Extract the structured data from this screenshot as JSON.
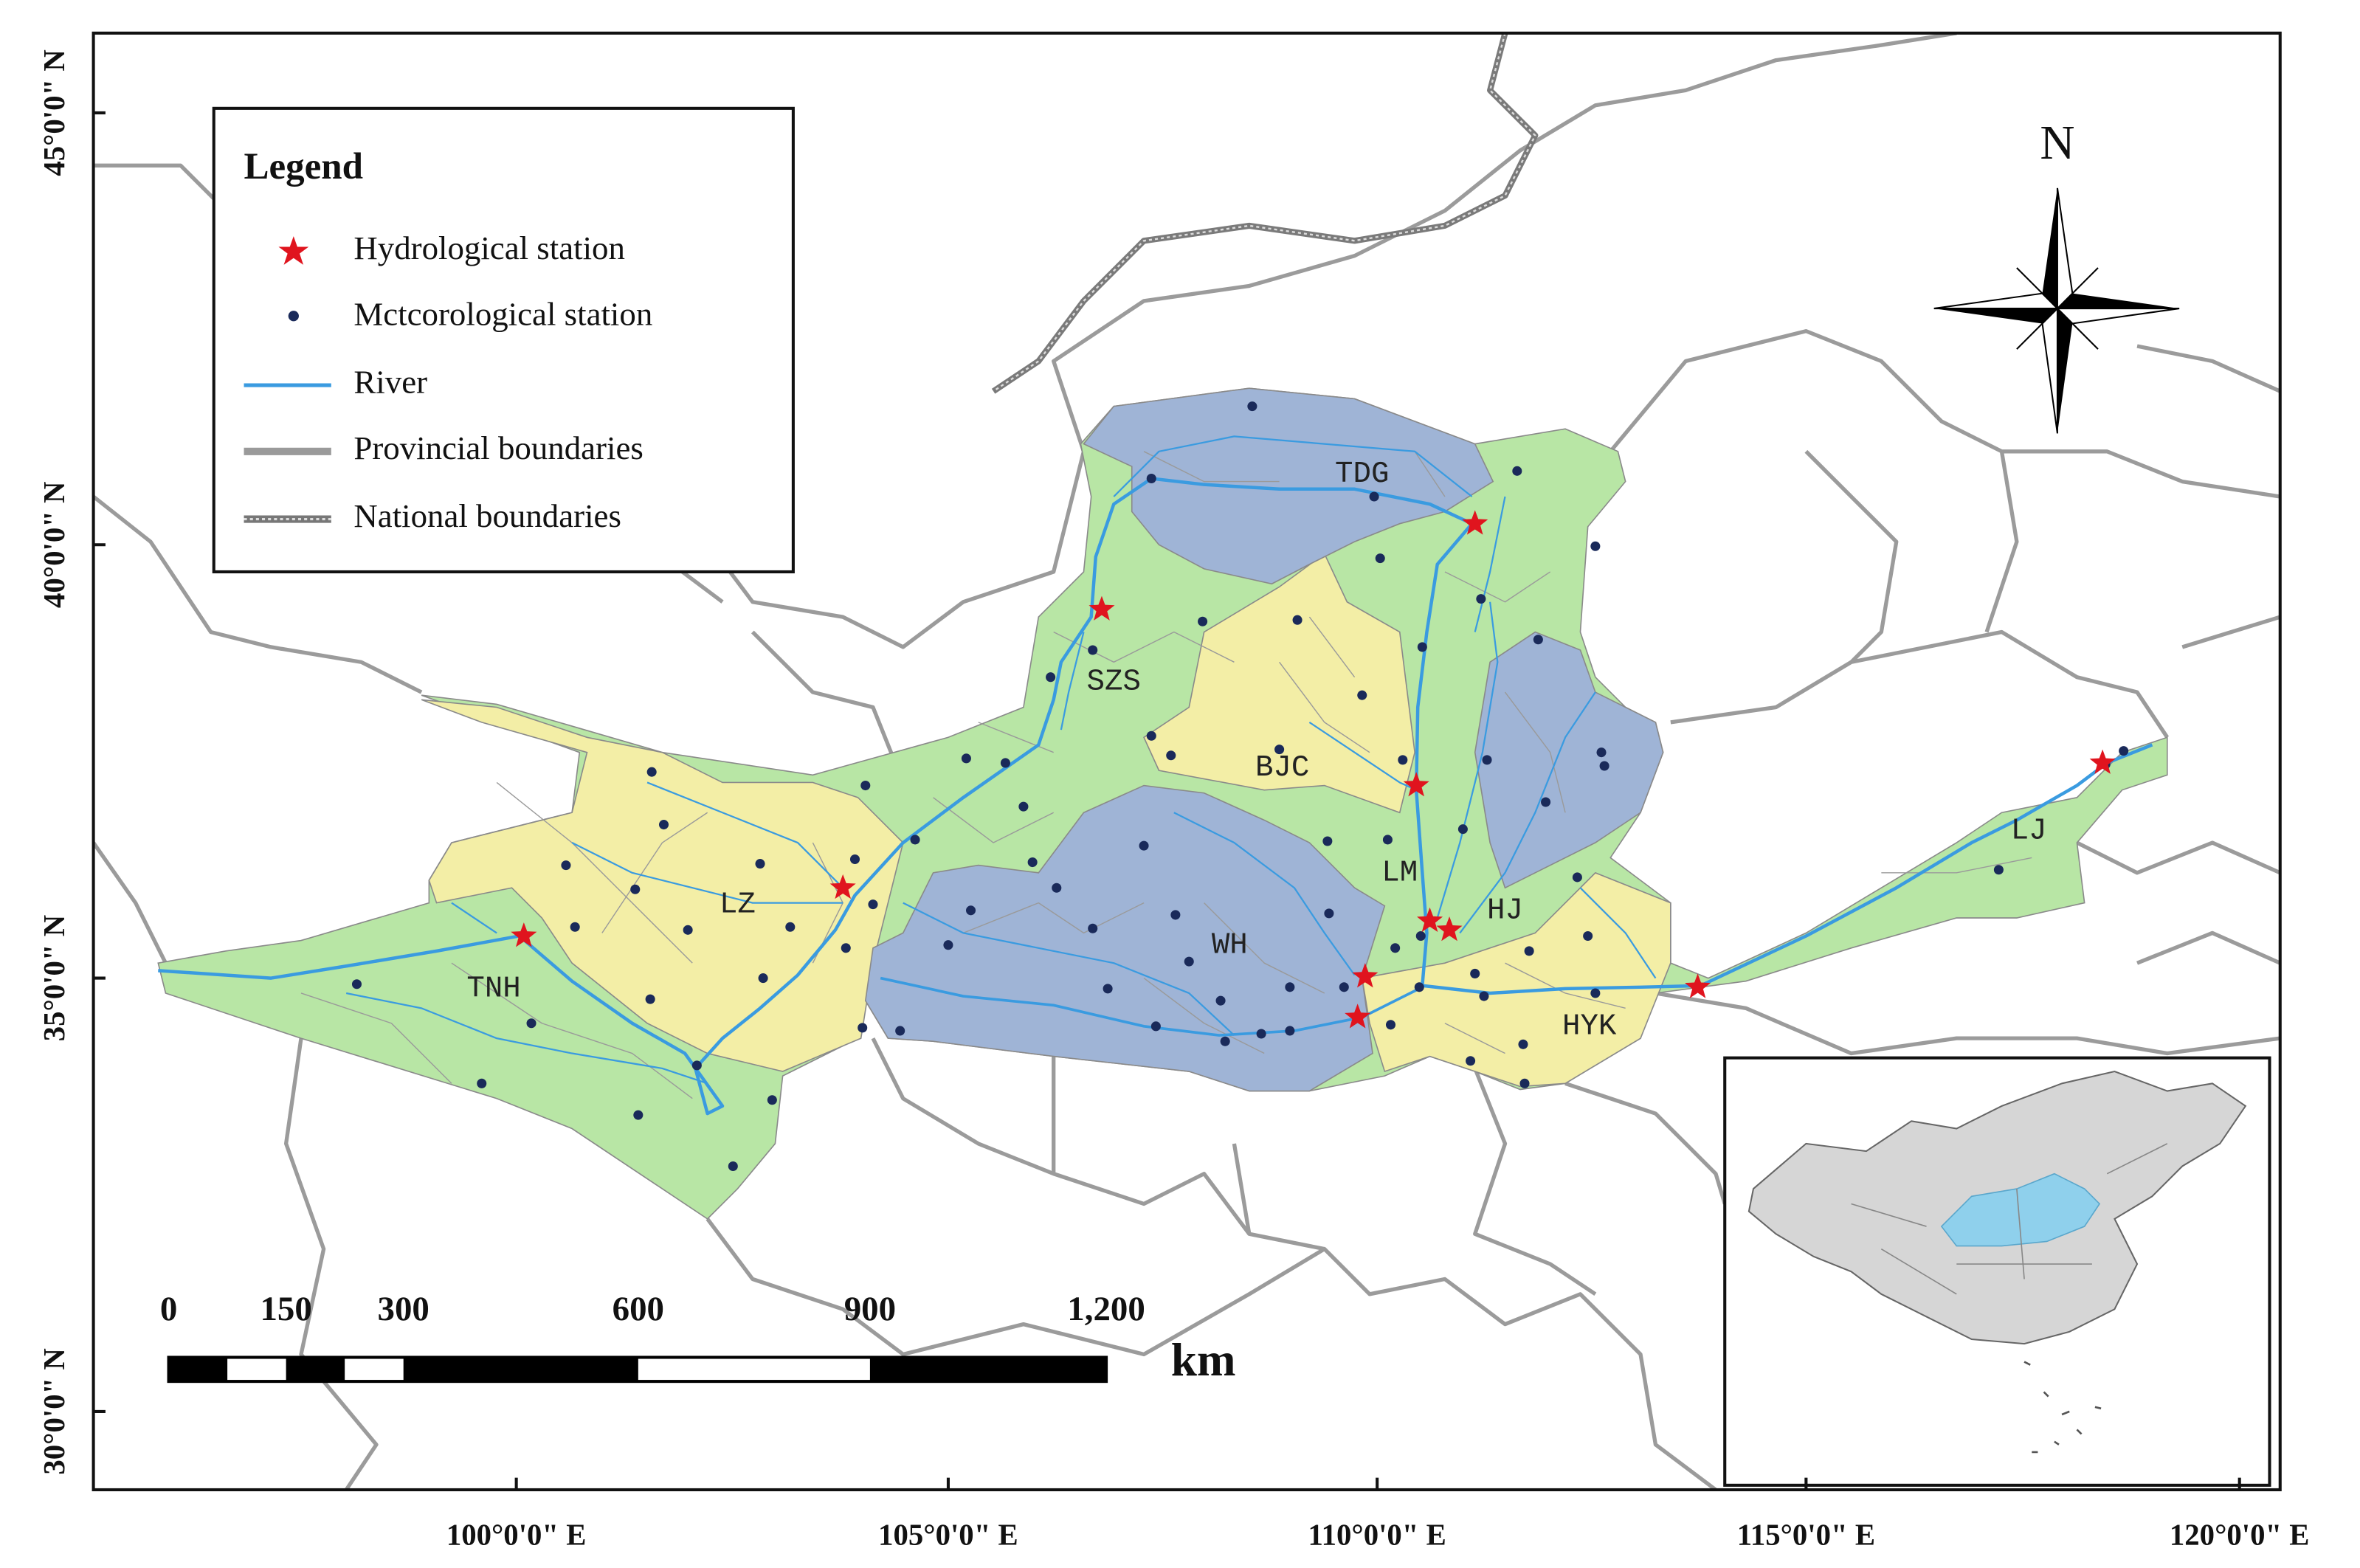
{
  "legend": {
    "title": "Legend",
    "items": [
      "Hydrological station",
      "Mctcorological station",
      "River",
      "Provincial boundaries",
      "National boundaries"
    ]
  },
  "compass": "N",
  "stations": [
    "TDG",
    "SZS",
    "BJC",
    "LM",
    "HJ",
    "WH",
    "LZ",
    "TNH",
    "HYK",
    "LJ"
  ],
  "latitude_labels": [
    "45°0'0\" N",
    "40°0'0\" N",
    "35°0'0\" N",
    "30°0'0\" N"
  ],
  "longitude_labels": [
    "100°0'0\" E",
    "105°0'0\" E",
    "110°0'0\" E",
    "115°0'0\" E",
    "120°0'0\" E"
  ],
  "scale_bar": {
    "labels": [
      "0",
      "150",
      "300",
      "600",
      "900",
      "1,200"
    ],
    "unit": "km"
  }
}
